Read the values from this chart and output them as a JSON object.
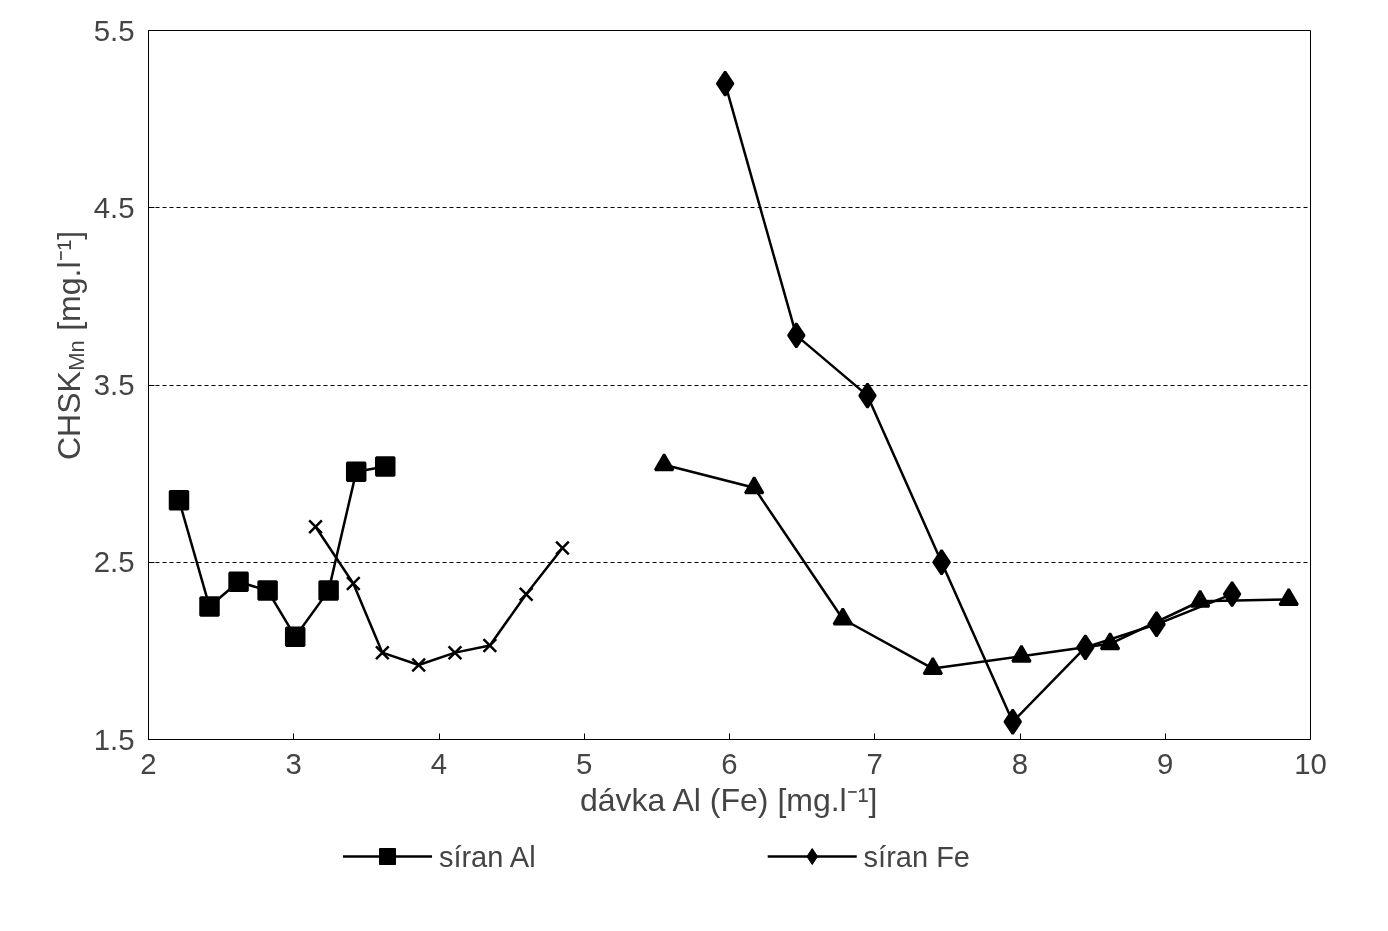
{
  "chart_data": {
    "type": "line",
    "xlabel": "dávka Al (Fe) [mg.l⁻¹]",
    "ylabel": "CHSK$_{Mn}$ [mg.l⁻¹]",
    "xlim": [
      2,
      10
    ],
    "xticks": [
      2,
      3,
      4,
      5,
      6,
      7,
      8,
      9,
      10
    ],
    "ylim": [
      1.5,
      5.5
    ],
    "yticks": [
      1.5,
      2.5,
      3.5,
      4.5,
      5.5
    ],
    "grid": "y",
    "legend": "bottom",
    "series": [
      {
        "name": "síran Al",
        "color": "#000000",
        "marker": "square",
        "x": [
          2.21,
          2.42,
          2.62,
          2.82,
          3.01,
          3.24,
          3.43,
          3.63
        ],
        "values": [
          2.85,
          2.25,
          2.39,
          2.34,
          2.08,
          2.34,
          3.01,
          3.04
        ]
      },
      {
        "name": "síran Fe",
        "color": "#000000",
        "marker": "diamond",
        "x": [
          5.97,
          6.46,
          6.95,
          7.46,
          7.95,
          8.45,
          8.94,
          9.46
        ],
        "values": [
          5.2,
          3.78,
          3.44,
          2.5,
          1.6,
          2.02,
          2.15,
          2.32
        ]
      },
      {
        "color": "#000000",
        "marker": "cross",
        "x": [
          3.15,
          3.41,
          3.61,
          3.86,
          4.11,
          4.35,
          4.6,
          4.85
        ],
        "values": [
          2.7,
          2.38,
          1.99,
          1.92,
          1.99,
          2.03,
          2.32,
          2.58
        ]
      },
      {
        "color": "#000000",
        "marker": "triangle",
        "x": [
          5.55,
          6.17,
          6.78,
          7.4,
          8.01,
          8.62,
          9.24,
          9.85
        ],
        "values": [
          3.05,
          2.92,
          2.18,
          1.9,
          1.97,
          2.04,
          2.28,
          2.29
        ]
      }
    ]
  }
}
